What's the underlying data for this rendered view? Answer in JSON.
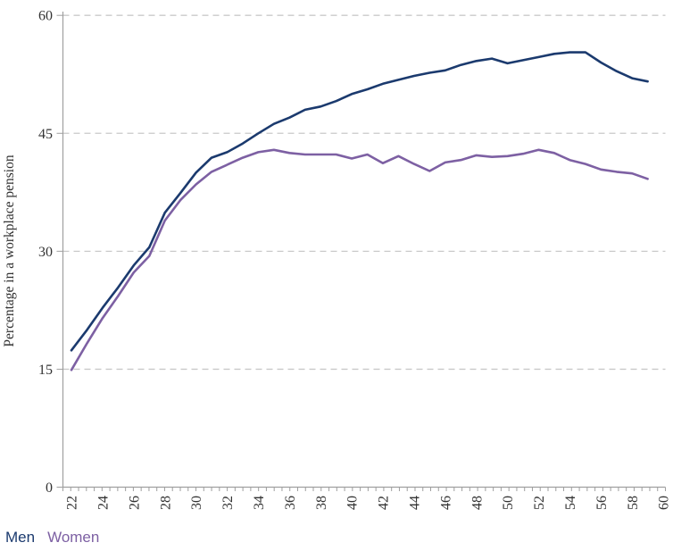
{
  "chart_data": {
    "type": "line",
    "title": "",
    "xlabel": "",
    "ylabel": "Percentage in a workplace pension",
    "ylim": [
      0,
      60
    ],
    "yticks": [
      0,
      15,
      30,
      45,
      60
    ],
    "x_tick_labels": [
      "22",
      "24",
      "26",
      "28",
      "30",
      "32",
      "34",
      "36",
      "38",
      "40",
      "42",
      "44",
      "46",
      "48",
      "50",
      "52",
      "54",
      "56",
      "58",
      "60"
    ],
    "grid": "horizontal dashed",
    "legend_position": "bottom-left",
    "x": [
      22,
      23,
      24,
      25,
      26,
      27,
      28,
      29,
      30,
      31,
      32,
      33,
      34,
      35,
      36,
      37,
      38,
      39,
      40,
      41,
      42,
      43,
      44,
      45,
      46,
      47,
      48,
      49,
      50,
      51,
      52,
      53,
      54,
      55,
      56,
      57,
      58,
      59
    ],
    "series": [
      {
        "name": "Men",
        "color": "#1b3a6e",
        "values": [
          17.4,
          20.0,
          22.8,
          25.4,
          28.2,
          30.5,
          34.9,
          37.4,
          40.0,
          41.9,
          42.6,
          43.7,
          45.0,
          46.2,
          47.0,
          48.0,
          48.4,
          49.1,
          50.0,
          50.6,
          51.3,
          51.8,
          52.3,
          52.7,
          53.0,
          53.7,
          54.2,
          54.5,
          53.9,
          54.3,
          54.7,
          55.1,
          55.3,
          55.3,
          54.0,
          52.9,
          52.0,
          51.6
        ]
      },
      {
        "name": "Women",
        "color": "#7d60a3",
        "values": [
          14.9,
          18.3,
          21.5,
          24.3,
          27.3,
          29.4,
          33.9,
          36.5,
          38.5,
          40.1,
          41.0,
          41.9,
          42.6,
          42.9,
          42.5,
          42.3,
          42.3,
          42.3,
          41.8,
          42.3,
          41.2,
          42.1,
          41.1,
          40.2,
          41.3,
          41.6,
          42.2,
          42.0,
          42.1,
          42.4,
          42.9,
          42.5,
          41.6,
          41.1,
          40.4,
          40.1,
          39.9,
          39.2
        ]
      }
    ],
    "colors": {
      "gridline": "#c9c9c9",
      "axis": "#9f9f9f",
      "tick_label": "#333333"
    }
  }
}
